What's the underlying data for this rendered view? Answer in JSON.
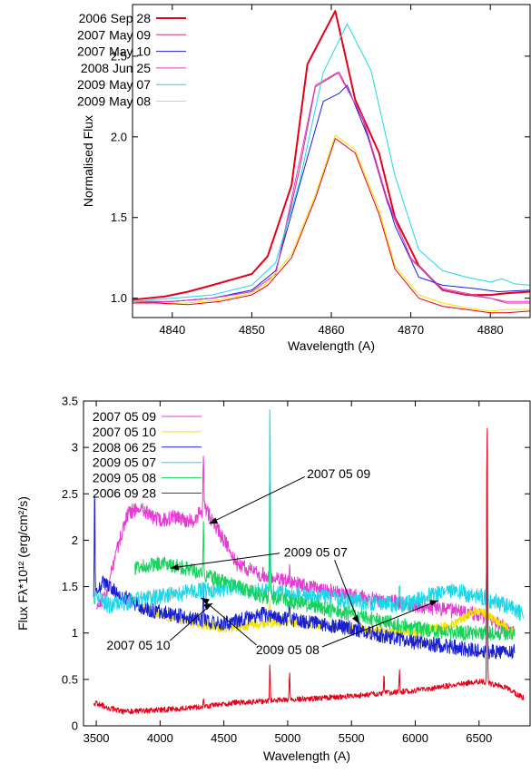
{
  "charts": [
    {
      "type": "line",
      "xlabel": "Wavelength (A)",
      "ylabel": "Normalised Flux",
      "xlim": [
        4835,
        4885
      ],
      "ylim": [
        0.88,
        2.82
      ],
      "x_ticks": [
        4840,
        4850,
        4860,
        4870,
        4880
      ],
      "y_ticks": [
        1.0,
        1.5,
        2.0,
        2.5
      ],
      "y_tick_labels": [
        "1.0",
        "1.5",
        "2.0",
        "2.5"
      ],
      "legend_position": "top-left",
      "series": [
        {
          "name": "2006 Sep 28",
          "color": "#e4001a",
          "width": 2,
          "points": [
            [
              4835,
              0.99
            ],
            [
              4839,
              1.01
            ],
            [
              4842,
              1.04
            ],
            [
              4845,
              1.08
            ],
            [
              4850,
              1.15
            ],
            [
              4852,
              1.26
            ],
            [
              4855,
              1.7
            ],
            [
              4857,
              2.45
            ],
            [
              4860.5,
              2.78
            ],
            [
              4863,
              2.23
            ],
            [
              4866,
              1.9
            ],
            [
              4868,
              1.5
            ],
            [
              4871,
              1.2
            ],
            [
              4874,
              1.05
            ],
            [
              4877,
              1.02
            ],
            [
              4880,
              1.02
            ],
            [
              4882,
              1.03
            ],
            [
              4885,
              1.04
            ]
          ]
        },
        {
          "name": "2007 May 09",
          "color": "#c0397b",
          "width": 1,
          "points": [
            [
              4835,
              0.98
            ],
            [
              4840,
              0.98
            ],
            [
              4845,
              1.0
            ],
            [
              4850,
              1.04
            ],
            [
              4853,
              1.15
            ],
            [
              4856,
              1.8
            ],
            [
              4858,
              2.31
            ],
            [
              4861,
              2.4
            ],
            [
              4864,
              2.1
            ],
            [
              4867,
              1.6
            ],
            [
              4870,
              1.25
            ],
            [
              4874,
              1.05
            ],
            [
              4877,
              1.02
            ],
            [
              4880,
              1.0
            ],
            [
              4882,
              0.97
            ],
            [
              4885,
              0.97
            ]
          ]
        },
        {
          "name": "2007 May 10",
          "color": "#1a20d0",
          "width": 1,
          "points": [
            [
              4835,
              0.97
            ],
            [
              4840,
              0.98
            ],
            [
              4845,
              1.0
            ],
            [
              4850,
              1.05
            ],
            [
              4853,
              1.17
            ],
            [
              4856,
              1.7
            ],
            [
              4859,
              2.22
            ],
            [
              4861,
              2.27
            ],
            [
              4862,
              2.32
            ],
            [
              4865,
              1.95
            ],
            [
              4868,
              1.45
            ],
            [
              4871,
              1.13
            ],
            [
              4874,
              1.08
            ],
            [
              4878,
              1.06
            ],
            [
              4881,
              1.04
            ],
            [
              4885,
              1.05
            ]
          ]
        },
        {
          "name": "2008 Jun 25",
          "color": "#e23cd2",
          "width": 1,
          "points": [
            [
              4835,
              0.97
            ],
            [
              4840,
              0.98
            ],
            [
              4845,
              1.0
            ],
            [
              4850,
              1.04
            ],
            [
              4853,
              1.15
            ],
            [
              4856,
              1.85
            ],
            [
              4858,
              2.32
            ],
            [
              4860.8,
              2.4
            ],
            [
              4864,
              2.12
            ],
            [
              4867,
              1.62
            ],
            [
              4870,
              1.24
            ],
            [
              4874,
              1.06
            ],
            [
              4877,
              1.03
            ],
            [
              4880,
              1.0
            ],
            [
              4882,
              0.98
            ],
            [
              4885,
              0.98
            ]
          ]
        },
        {
          "name": "2009 May 07",
          "color": "#1fd6e6",
          "width": 1,
          "points": [
            [
              4835,
              0.98
            ],
            [
              4840,
              1.0
            ],
            [
              4845,
              1.02
            ],
            [
              4850,
              1.08
            ],
            [
              4853,
              1.22
            ],
            [
              4856,
              1.72
            ],
            [
              4859,
              2.4
            ],
            [
              4862,
              2.7
            ],
            [
              4865,
              2.41
            ],
            [
              4868,
              1.76
            ],
            [
              4871,
              1.3
            ],
            [
              4874,
              1.17
            ],
            [
              4877,
              1.13
            ],
            [
              4880,
              1.1
            ],
            [
              4881.5,
              1.12
            ],
            [
              4883,
              1.09
            ],
            [
              4885,
              1.08
            ]
          ]
        },
        {
          "name": "2009 May 08",
          "color": "#f1e200",
          "width": 1,
          "points": [
            [
              4835,
              0.97
            ],
            [
              4838,
              0.97
            ],
            [
              4842,
              0.97
            ],
            [
              4846,
              0.99
            ],
            [
              4850,
              1.03
            ],
            [
              4852,
              1.1
            ],
            [
              4855,
              1.27
            ],
            [
              4858,
              1.64
            ],
            [
              4860.5,
              2.01
            ],
            [
              4863,
              1.92
            ],
            [
              4866,
              1.55
            ],
            [
              4868,
              1.2
            ],
            [
              4871,
              1.02
            ],
            [
              4874,
              0.97
            ],
            [
              4877,
              0.94
            ],
            [
              4880,
              0.92
            ],
            [
              4882,
              0.93
            ],
            [
              4885,
              0.93
            ]
          ]
        },
        {
          "name": "",
          "color": "#e4001a",
          "width": 1,
          "points": [
            [
              4835,
              0.97
            ],
            [
              4838,
              0.97
            ],
            [
              4842,
              0.96
            ],
            [
              4846,
              0.98
            ],
            [
              4850,
              1.02
            ],
            [
              4852,
              1.08
            ],
            [
              4855,
              1.25
            ],
            [
              4858,
              1.62
            ],
            [
              4860.5,
              1.99
            ],
            [
              4863,
              1.9
            ],
            [
              4866,
              1.52
            ],
            [
              4868,
              1.18
            ],
            [
              4871,
              1.0
            ],
            [
              4874,
              0.95
            ],
            [
              4877,
              0.93
            ],
            [
              4880,
              0.91
            ],
            [
              4882,
              0.91
            ],
            [
              4885,
              0.92
            ]
          ]
        }
      ]
    },
    {
      "type": "line",
      "xlabel": "Wavelength (A)",
      "ylabel": "Flux Fλ*10¹² (erg/cm²/s)",
      "xlim": [
        3400,
        6900
      ],
      "ylim": [
        0,
        3.5
      ],
      "x_ticks": [
        3500,
        4000,
        4500,
        5000,
        5500,
        6000,
        6500
      ],
      "y_ticks": [
        0,
        0.5,
        1,
        1.5,
        2,
        2.5,
        3,
        3.5
      ],
      "y_tick_labels": [
        "0",
        "0.5",
        "1",
        "1.5",
        "2",
        "2.5",
        "3",
        "3.5"
      ],
      "legend_position": "top-left",
      "series": [
        {
          "name": "2007 05 09",
          "color": "#e23cd2",
          "x_range": [
            3500,
            6780
          ],
          "anchors": [
            [
              3500,
              1.3
            ],
            [
              3580,
              1.4
            ],
            [
              3650,
              1.85
            ],
            [
              3750,
              2.3
            ],
            [
              3850,
              2.35
            ],
            [
              4000,
              2.2
            ],
            [
              4100,
              2.25
            ],
            [
              4250,
              2.2
            ],
            [
              4350,
              2.35
            ],
            [
              4500,
              2.0
            ],
            [
              4600,
              1.75
            ],
            [
              4750,
              1.65
            ],
            [
              5000,
              1.55
            ],
            [
              5500,
              1.4
            ],
            [
              6000,
              1.3
            ],
            [
              6500,
              1.2
            ],
            [
              6780,
              1.0
            ]
          ],
          "lines": [
            [
              4340,
              0.6
            ],
            [
              4861,
              0.4
            ],
            [
              6563,
              1.3
            ],
            [
              5015,
              0.15
            ]
          ],
          "noise": 0.08
        },
        {
          "name": "2007 05 10",
          "color": "#f1e200",
          "x_range": [
            3850,
            6780
          ],
          "anchors": [
            [
              3850,
              1.3
            ],
            [
              4000,
              1.2
            ],
            [
              4300,
              1.1
            ],
            [
              4500,
              1.05
            ],
            [
              4800,
              1.1
            ],
            [
              5000,
              1.12
            ],
            [
              5500,
              1.05
            ],
            [
              6000,
              1.0
            ],
            [
              6300,
              1.1
            ],
            [
              6500,
              1.25
            ],
            [
              6780,
              1.0
            ]
          ],
          "lines": [
            [
              4861,
              0.25
            ],
            [
              6563,
              1.2
            ]
          ],
          "noise": 0.05
        },
        {
          "name": "2008 06 25",
          "color": "#1a20d0",
          "x_range": [
            3480,
            6780
          ],
          "anchors": [
            [
              3480,
              1.4
            ],
            [
              3550,
              1.55
            ],
            [
              3700,
              1.4
            ],
            [
              3900,
              1.25
            ],
            [
              4100,
              1.2
            ],
            [
              4300,
              1.15
            ],
            [
              4500,
              1.1
            ],
            [
              4800,
              1.2
            ],
            [
              5000,
              1.15
            ],
            [
              5500,
              1.05
            ],
            [
              6000,
              0.9
            ],
            [
              6300,
              0.85
            ],
            [
              6500,
              0.8
            ],
            [
              6780,
              0.8
            ]
          ],
          "lines": [
            [
              3487,
              1.2
            ],
            [
              4340,
              0.4
            ],
            [
              6563,
              1.6
            ],
            [
              5015,
              0.2
            ]
          ],
          "noise": 0.08
        },
        {
          "name": "2009 05 07",
          "color": "#1fd6e6",
          "x_range": [
            3480,
            6850
          ],
          "anchors": [
            [
              3480,
              1.4
            ],
            [
              3600,
              1.3
            ],
            [
              3800,
              1.35
            ],
            [
              4000,
              1.4
            ],
            [
              4300,
              1.45
            ],
            [
              4600,
              1.5
            ],
            [
              4800,
              1.45
            ],
            [
              5000,
              1.42
            ],
            [
              5500,
              1.35
            ],
            [
              5900,
              1.3
            ],
            [
              6100,
              1.4
            ],
            [
              6300,
              1.45
            ],
            [
              6500,
              1.4
            ],
            [
              6700,
              1.3
            ],
            [
              6850,
              1.2
            ]
          ],
          "lines": [
            [
              4861,
              2.1
            ],
            [
              6563,
              1.8
            ],
            [
              5876,
              0.3
            ]
          ],
          "noise": 0.09
        },
        {
          "name": "2009 05 08",
          "color": "#18d25e",
          "x_range": [
            3800,
            6780
          ],
          "anchors": [
            [
              3800,
              1.7
            ],
            [
              4000,
              1.75
            ],
            [
              4200,
              1.7
            ],
            [
              4400,
              1.6
            ],
            [
              4600,
              1.5
            ],
            [
              4800,
              1.4
            ],
            [
              5000,
              1.35
            ],
            [
              5500,
              1.2
            ],
            [
              6000,
              1.05
            ],
            [
              6300,
              1.0
            ],
            [
              6500,
              1.0
            ],
            [
              6780,
              1.0
            ]
          ],
          "lines": [
            [
              4340,
              0.6
            ],
            [
              4861,
              1.25
            ],
            [
              6563,
              1.8
            ]
          ],
          "noise": 0.08
        },
        {
          "name": "2006 09 28",
          "color": "#e4001a",
          "x_range": [
            3480,
            6850
          ],
          "anchors": [
            [
              3480,
              0.25
            ],
            [
              3700,
              0.15
            ],
            [
              4000,
              0.17
            ],
            [
              4300,
              0.2
            ],
            [
              4600,
              0.25
            ],
            [
              5000,
              0.28
            ],
            [
              5500,
              0.32
            ],
            [
              6000,
              0.38
            ],
            [
              6500,
              0.48
            ],
            [
              6700,
              0.42
            ],
            [
              6850,
              0.3
            ]
          ],
          "lines": [
            [
              4340,
              0.12
            ],
            [
              4861,
              0.38
            ],
            [
              5015,
              0.3
            ],
            [
              5755,
              0.22
            ],
            [
              5876,
              0.25
            ],
            [
              6563,
              2.95
            ]
          ],
          "noise": 0.03
        }
      ],
      "annotations": [
        {
          "text": "2007 05 09",
          "x": 5400,
          "y": 2.72,
          "target": [
            4385,
            2.18
          ]
        },
        {
          "text": "2009 05 07",
          "x": 5220,
          "y": 1.87,
          "target": [
            4080,
            1.7
          ]
        },
        {
          "text": "2009 05 07",
          "x": 5220,
          "y": 1.87,
          "target": [
            5560,
            1.1
          ]
        },
        {
          "text": "2007 05 10",
          "x": 3830,
          "y": 0.87,
          "target": [
            4410,
            1.32
          ]
        },
        {
          "text": "2009 05 08",
          "x": 5000,
          "y": 0.82,
          "target": [
            4320,
            1.38
          ]
        },
        {
          "text": "2009 05 08",
          "x": 5000,
          "y": 0.82,
          "target": [
            6180,
            1.35
          ]
        }
      ]
    }
  ]
}
